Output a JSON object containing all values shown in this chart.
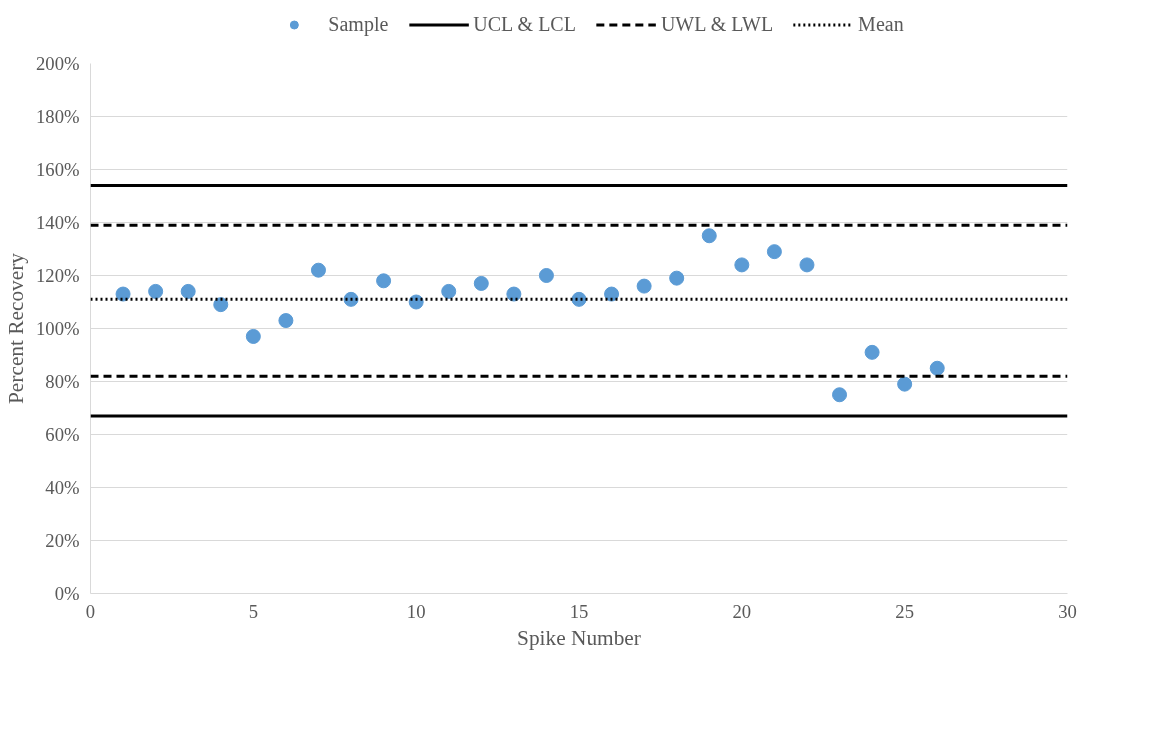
{
  "chart_data": {
    "type": "scatter",
    "xlabel": "Spike Number",
    "ylabel": "Percent Recovery",
    "x": [
      1,
      2,
      3,
      4,
      5,
      6,
      7,
      8,
      9,
      10,
      11,
      12,
      13,
      14,
      15,
      16,
      17,
      18,
      19,
      20,
      21,
      22,
      23,
      24,
      25,
      26
    ],
    "series": [
      {
        "name": "Sample",
        "color": "#5b9bd5",
        "marker": "circle",
        "values": [
          113,
          114,
          114,
          109,
          97,
          103,
          122,
          111,
          118,
          110,
          114,
          117,
          113,
          120,
          111,
          113,
          116,
          119,
          135,
          124,
          129,
          124,
          75,
          91,
          79,
          85
        ]
      }
    ],
    "ref_lines": [
      {
        "axis": "y",
        "value": 154,
        "label": "UCL & LCL",
        "color": "#000000",
        "line_style": "solid"
      },
      {
        "axis": "y",
        "value": 67,
        "color": "#000000",
        "line_style": "solid"
      },
      {
        "axis": "y",
        "value": 139,
        "label": "UWL & LWL",
        "color": "#000000",
        "line_style": "dashed"
      },
      {
        "axis": "y",
        "value": 82,
        "color": "#000000",
        "line_style": "dashed"
      },
      {
        "axis": "y",
        "value": 111,
        "label": "Mean",
        "color": "#000000",
        "line_style": "dotted"
      }
    ],
    "xlim": [
      0,
      30
    ],
    "xticks": [
      0,
      5,
      10,
      15,
      20,
      25,
      30
    ],
    "ylim": [
      0,
      200
    ],
    "yticks": [
      {
        "value": 0,
        "label": "0%"
      },
      {
        "value": 20,
        "label": "20%"
      },
      {
        "value": 40,
        "label": "40%"
      },
      {
        "value": 60,
        "label": "60%"
      },
      {
        "value": 80,
        "label": "80%"
      },
      {
        "value": 100,
        "label": "100%"
      },
      {
        "value": 120,
        "label": "120%"
      },
      {
        "value": 140,
        "label": "140%"
      },
      {
        "value": 160,
        "label": "160%"
      },
      {
        "value": 180,
        "label": "180%"
      },
      {
        "value": 200,
        "label": "200%"
      }
    ],
    "grid": "y",
    "legend": "top"
  }
}
